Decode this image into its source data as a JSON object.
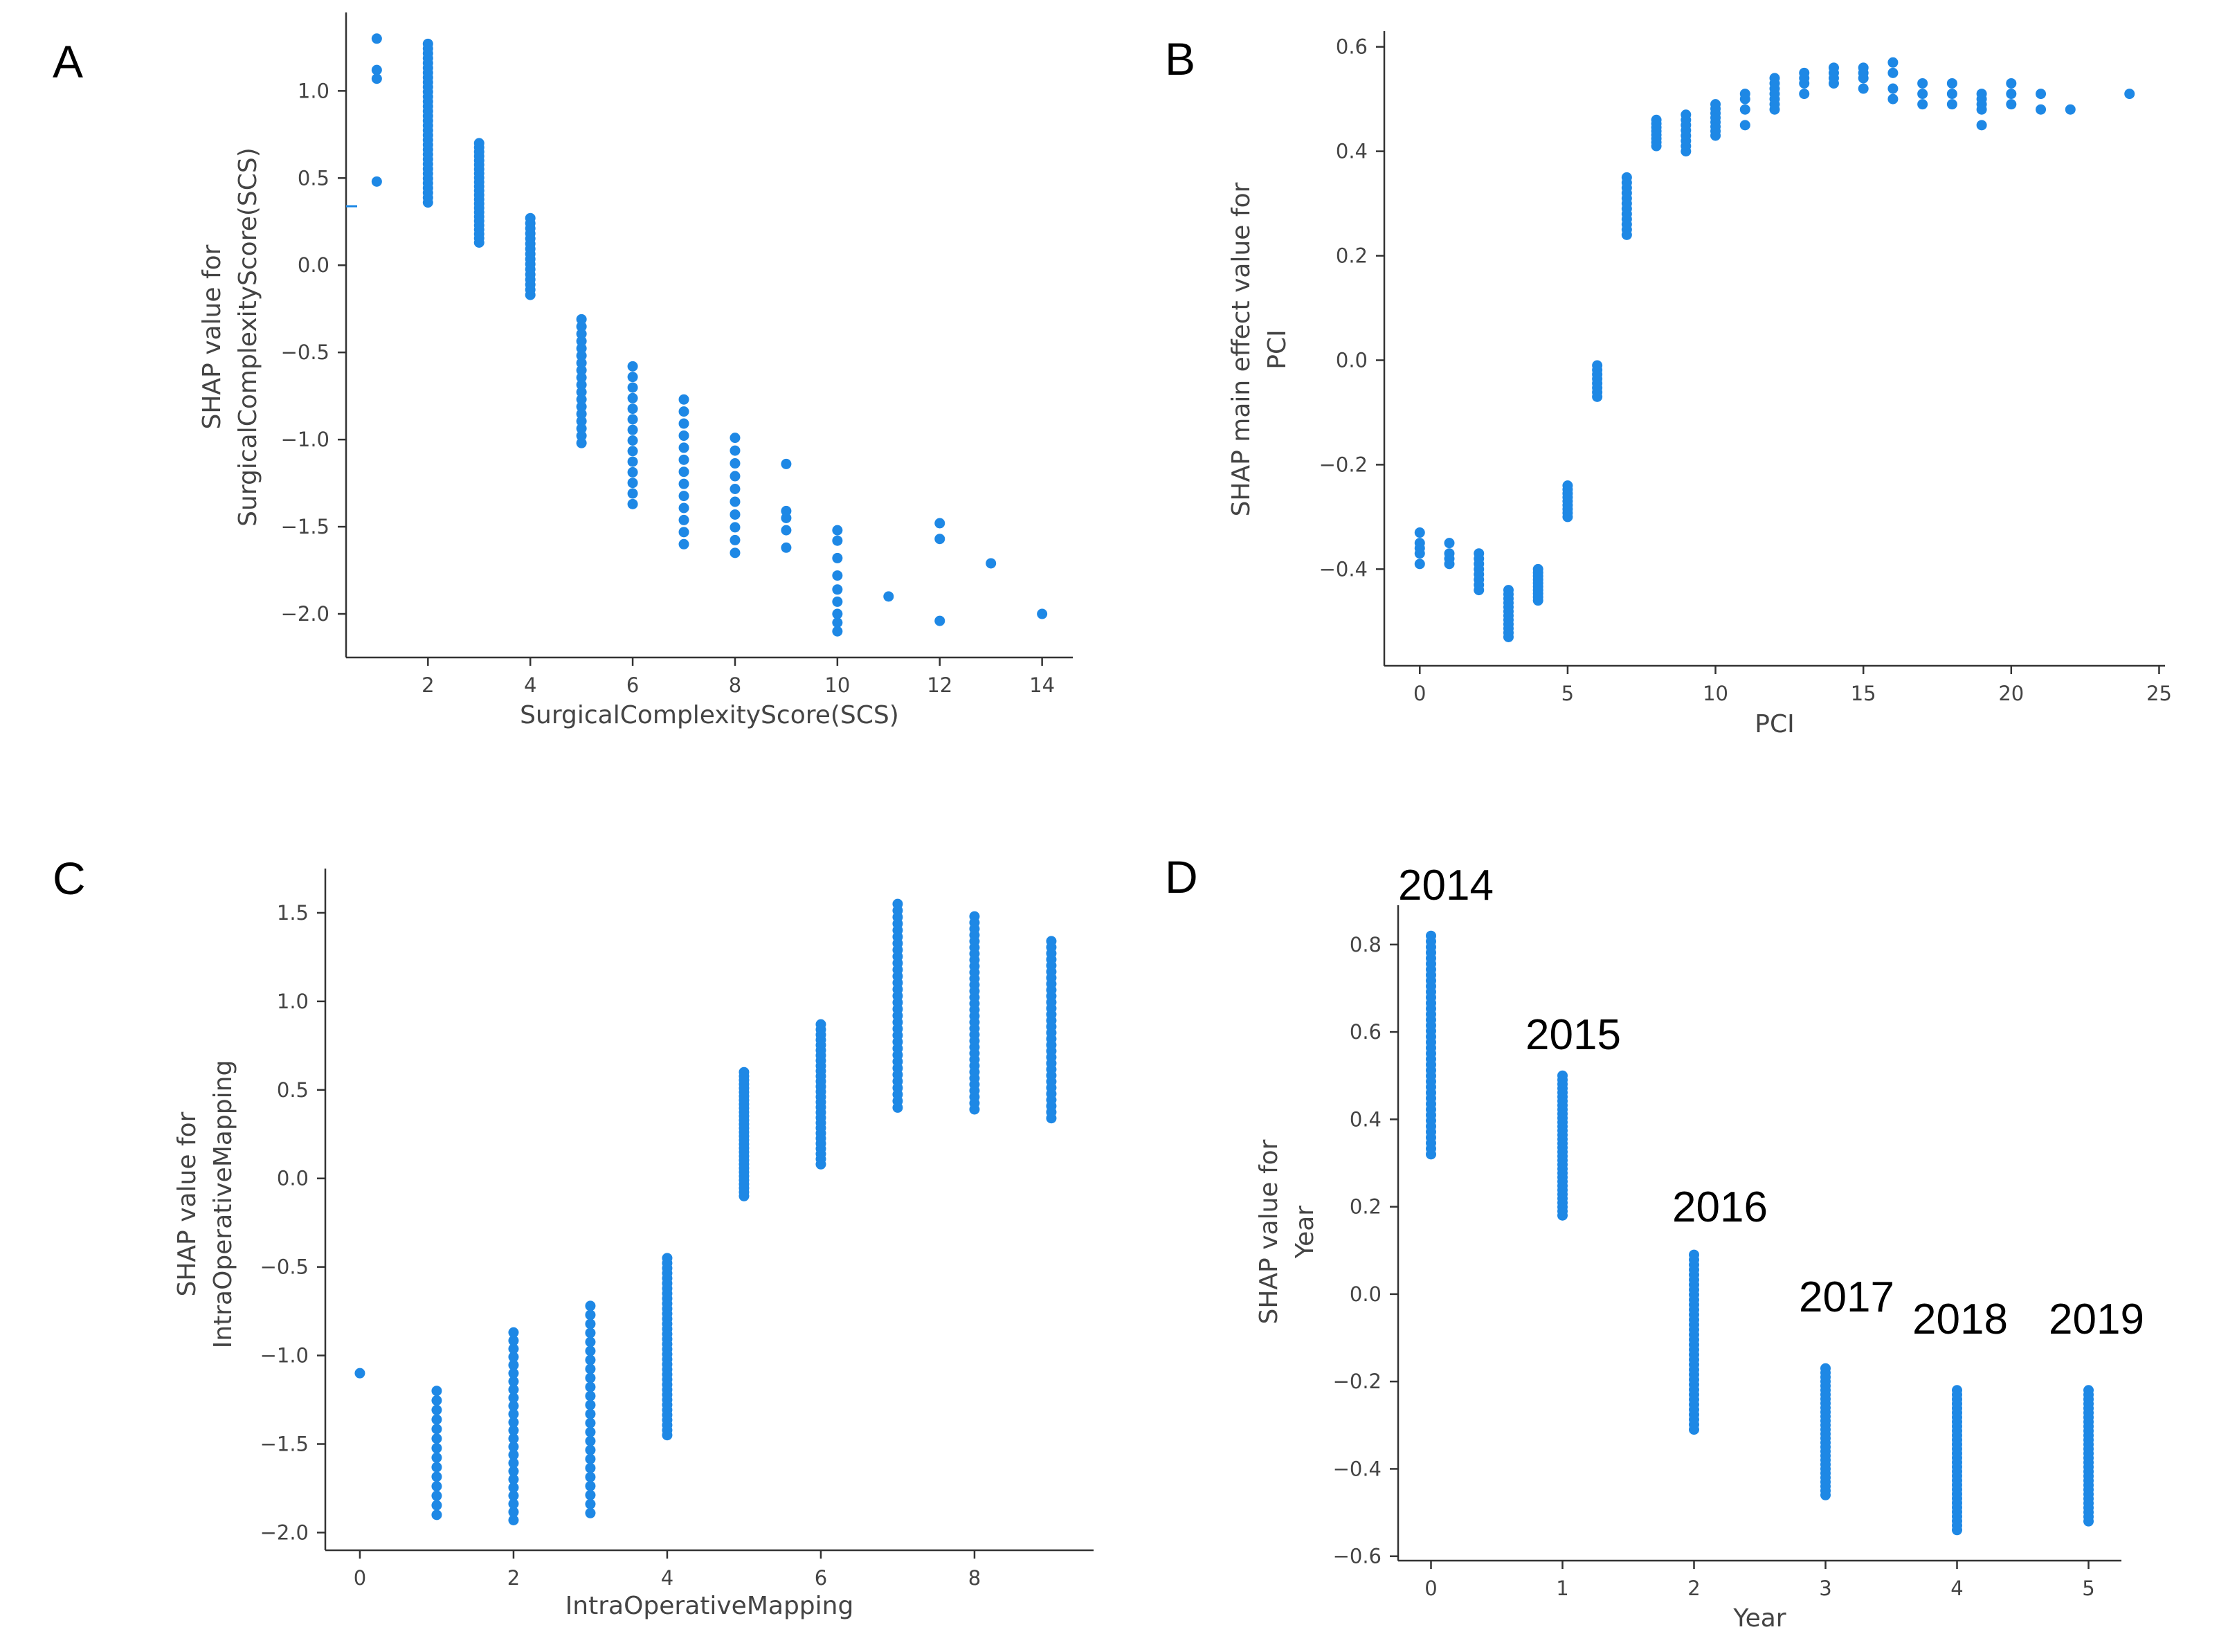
{
  "colors": {
    "marker": "#1e88e5",
    "axis": "#333333",
    "text": "#444444"
  },
  "chart_data": [
    {
      "panel": "A",
      "type": "scatter",
      "xlabel": "SurgicalComplexityScore(SCS)",
      "ylabel": [
        "SHAP value for",
        "SurgicalComplexityScore(SCS)"
      ],
      "xticks": [
        2,
        4,
        6,
        8,
        10,
        12,
        14
      ],
      "xtick_labels": [
        "2",
        "4",
        "6",
        "8",
        "10",
        "12",
        "14"
      ],
      "yticks": [
        1.0,
        0.5,
        0.0,
        -0.5,
        -1.0,
        -1.5,
        -2.0
      ],
      "ytick_labels": [
        "1.0",
        "0.5",
        "0.0",
        "−0.5",
        "−1.0",
        "−1.5",
        "−2.0"
      ],
      "xlim": [
        0.4,
        14.6
      ],
      "ylim": [
        -2.25,
        1.45
      ],
      "grid": false,
      "points": [
        {
          "x": 1,
          "y": [
            1.3,
            1.12,
            1.07,
            0.48
          ]
        },
        {
          "x": 2,
          "y_range": [
            0.36,
            1.27
          ],
          "n": 34
        },
        {
          "x": 3,
          "y_range": [
            0.13,
            0.7
          ],
          "n": 24
        },
        {
          "x": 4,
          "y_range": [
            -0.17,
            0.27
          ],
          "n": 16
        },
        {
          "x": 5,
          "y_range": [
            -1.02,
            -0.31
          ],
          "n": 18
        },
        {
          "x": 6,
          "y_range": [
            -1.37,
            -0.58
          ],
          "n": 14
        },
        {
          "x": 7,
          "y_range": [
            -1.6,
            -0.77
          ],
          "n": 13
        },
        {
          "x": 8,
          "y_range": [
            -1.65,
            -0.99
          ],
          "n": 10
        },
        {
          "x": 9,
          "y": [
            -1.14,
            -1.41,
            -1.45,
            -1.52,
            -1.62
          ]
        },
        {
          "x": 10,
          "y": [
            -1.52,
            -1.58,
            -1.68,
            -1.78,
            -1.86,
            -1.93,
            -2.0,
            -2.05,
            -2.1
          ]
        },
        {
          "x": 11,
          "y": [
            -1.9
          ]
        },
        {
          "x": 12,
          "y": [
            -1.48,
            -1.57,
            -2.04
          ]
        },
        {
          "x": 13,
          "y": [
            -1.71
          ]
        },
        {
          "x": 14,
          "y": [
            -2.0
          ]
        }
      ]
    },
    {
      "panel": "B",
      "type": "scatter",
      "xlabel": "PCI",
      "ylabel": [
        "SHAP main effect value for",
        "PCI"
      ],
      "xticks": [
        0,
        5,
        10,
        15,
        20,
        25
      ],
      "xtick_labels": [
        "0",
        "5",
        "10",
        "15",
        "20",
        "25"
      ],
      "yticks": [
        0.6,
        0.4,
        0.2,
        0.0,
        -0.2,
        -0.4
      ],
      "ytick_labels": [
        "0.6",
        "0.4",
        "0.2",
        "0.0",
        "−0.2",
        "−0.4"
      ],
      "xlim": [
        -1.2,
        25.2
      ],
      "ylim": [
        -0.585,
        0.63
      ],
      "grid": false,
      "points": [
        {
          "x": 0,
          "y": [
            -0.33,
            -0.35,
            -0.36,
            -0.37,
            -0.39
          ]
        },
        {
          "x": 1,
          "y": [
            -0.35,
            -0.37,
            -0.38,
            -0.39
          ]
        },
        {
          "x": 2,
          "y_range": [
            -0.44,
            -0.37
          ],
          "n": 8
        },
        {
          "x": 3,
          "y_range": [
            -0.53,
            -0.44
          ],
          "n": 12
        },
        {
          "x": 4,
          "y_range": [
            -0.46,
            -0.4
          ],
          "n": 10
        },
        {
          "x": 5,
          "y_range": [
            -0.3,
            -0.24
          ],
          "n": 9
        },
        {
          "x": 6,
          "y_range": [
            -0.07,
            -0.01
          ],
          "n": 8
        },
        {
          "x": 7,
          "y_range": [
            0.24,
            0.35
          ],
          "n": 12
        },
        {
          "x": 8,
          "y_range": [
            0.41,
            0.46
          ],
          "n": 8
        },
        {
          "x": 9,
          "y_range": [
            0.4,
            0.47
          ],
          "n": 8
        },
        {
          "x": 10,
          "y_range": [
            0.43,
            0.49
          ],
          "n": 8
        },
        {
          "x": 11,
          "y": [
            0.45,
            0.48,
            0.5,
            0.51
          ]
        },
        {
          "x": 12,
          "y_range": [
            0.48,
            0.54
          ],
          "n": 7
        },
        {
          "x": 13,
          "y": [
            0.51,
            0.53,
            0.54,
            0.55
          ]
        },
        {
          "x": 14,
          "y": [
            0.53,
            0.54,
            0.55,
            0.56
          ]
        },
        {
          "x": 15,
          "y": [
            0.52,
            0.54,
            0.55,
            0.56
          ]
        },
        {
          "x": 16,
          "y": [
            0.5,
            0.52,
            0.55,
            0.57
          ]
        },
        {
          "x": 17,
          "y": [
            0.49,
            0.51,
            0.53
          ]
        },
        {
          "x": 18,
          "y": [
            0.49,
            0.51,
            0.53
          ]
        },
        {
          "x": 19,
          "y": [
            0.45,
            0.48,
            0.49,
            0.5,
            0.51
          ]
        },
        {
          "x": 20,
          "y": [
            0.49,
            0.51,
            0.53
          ]
        },
        {
          "x": 21,
          "y": [
            0.48,
            0.51
          ]
        },
        {
          "x": 22,
          "y": [
            0.48
          ]
        },
        {
          "x": 24,
          "y": [
            0.51
          ]
        }
      ]
    },
    {
      "panel": "C",
      "type": "scatter",
      "xlabel": "IntraOperativeMapping",
      "ylabel": [
        "SHAP value for",
        "IntraOperativeMapping"
      ],
      "xticks": [
        0,
        2,
        4,
        6,
        8
      ],
      "xtick_labels": [
        "0",
        "2",
        "4",
        "6",
        "8"
      ],
      "yticks": [
        1.5,
        1.0,
        0.5,
        0.0,
        -0.5,
        -1.0,
        -1.5,
        -2.0
      ],
      "ytick_labels": [
        "1.5",
        "1.0",
        "0.5",
        "0.0",
        "−0.5",
        "−1.0",
        "−1.5",
        "−2.0"
      ],
      "xlim": [
        -0.45,
        9.55
      ],
      "ylim": [
        -2.1,
        1.75
      ],
      "grid": false,
      "points": [
        {
          "x": 0,
          "y": [
            -1.1
          ]
        },
        {
          "x": 1,
          "y_range": [
            -1.9,
            -1.2
          ],
          "n": 14
        },
        {
          "x": 2,
          "y_range": [
            -1.93,
            -0.87
          ],
          "n": 24
        },
        {
          "x": 3,
          "y_range": [
            -1.89,
            -0.72
          ],
          "n": 24
        },
        {
          "x": 4,
          "y_range": [
            -1.45,
            -0.45
          ],
          "n": 36
        },
        {
          "x": 5,
          "y_range": [
            -0.1,
            0.6
          ],
          "n": 32
        },
        {
          "x": 6,
          "y_range": [
            0.08,
            0.87
          ],
          "n": 28
        },
        {
          "x": 7,
          "y_range": [
            0.4,
            1.55
          ],
          "n": 32
        },
        {
          "x": 8,
          "y_range": [
            0.39,
            1.48
          ],
          "n": 32
        },
        {
          "x": 9,
          "y_range": [
            0.34,
            1.34
          ],
          "n": 30
        }
      ]
    },
    {
      "panel": "D",
      "type": "scatter",
      "xlabel": "Year",
      "ylabel": [
        "SHAP value for",
        "Year"
      ],
      "xticks": [
        0,
        1,
        2,
        3,
        4,
        5
      ],
      "xtick_labels": [
        "0",
        "1",
        "2",
        "3",
        "4",
        "5"
      ],
      "yticks": [
        0.8,
        0.6,
        0.4,
        0.2,
        0.0,
        -0.2,
        -0.4,
        -0.6
      ],
      "ytick_labels": [
        "0.8",
        "0.6",
        "0.4",
        "0.2",
        "0.0",
        "−0.2",
        "−0.4",
        "−0.6"
      ],
      "xlim": [
        -0.25,
        5.25
      ],
      "ylim": [
        -0.61,
        0.89
      ],
      "grid": false,
      "annotations": [
        "2014",
        "2015",
        "2016",
        "2017",
        "2018",
        "2019"
      ],
      "points": [
        {
          "x": 0,
          "y_range": [
            0.32,
            0.82
          ],
          "n": 40
        },
        {
          "x": 1,
          "y_range": [
            0.18,
            0.5
          ],
          "n": 34
        },
        {
          "x": 2,
          "y_range": [
            -0.31,
            0.09
          ],
          "n": 36
        },
        {
          "x": 3,
          "y_range": [
            -0.46,
            -0.17
          ],
          "n": 30
        },
        {
          "x": 4,
          "y_range": [
            -0.54,
            -0.22
          ],
          "n": 32
        },
        {
          "x": 5,
          "y_range": [
            -0.52,
            -0.22
          ],
          "n": 30
        }
      ]
    }
  ]
}
